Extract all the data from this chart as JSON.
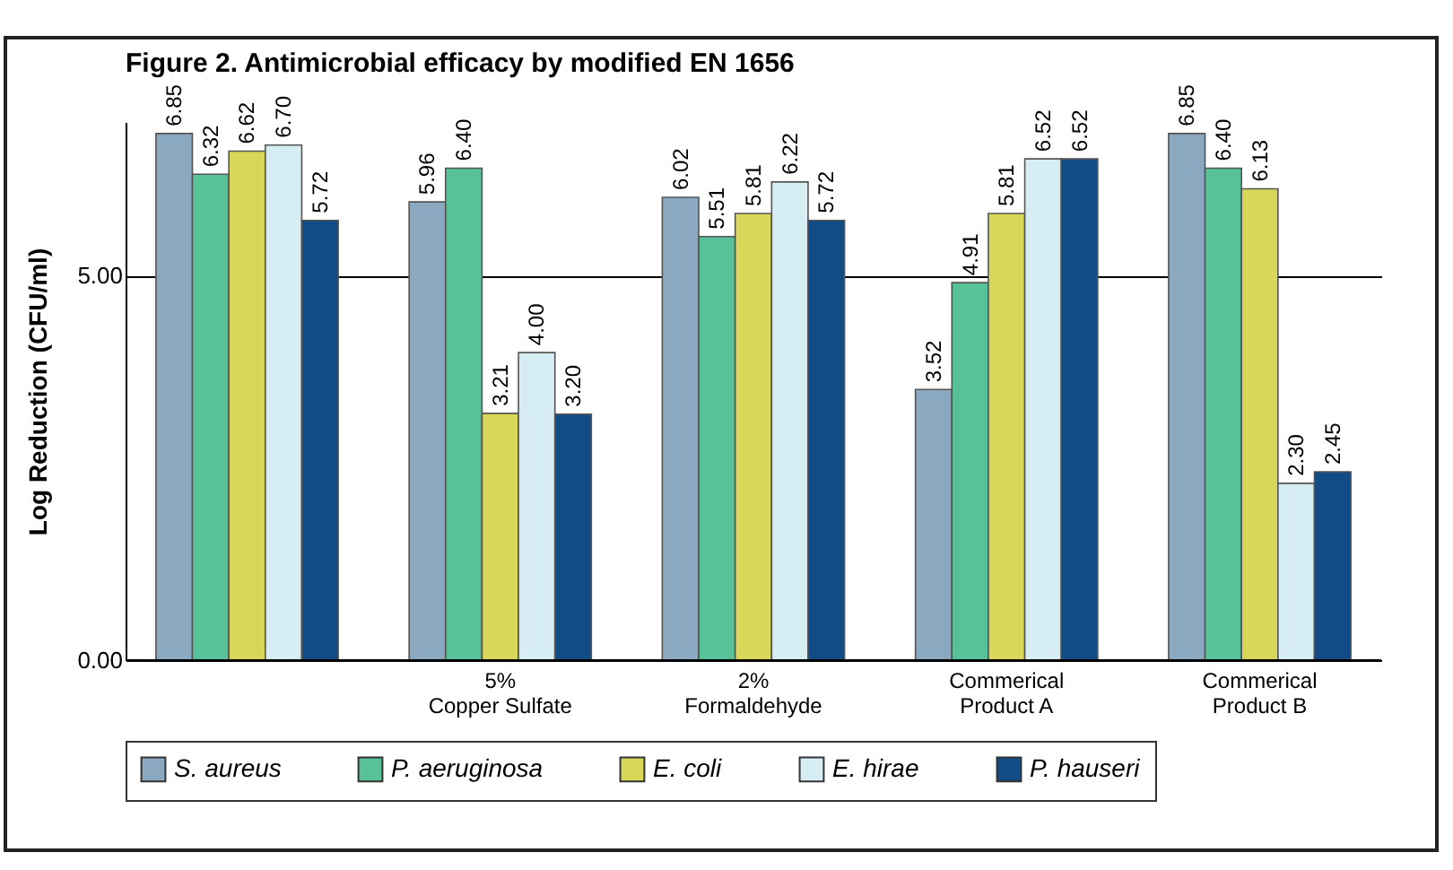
{
  "chart_data": {
    "type": "bar",
    "title": "Figure 2. Antimicrobial efficacy by modified EN 1656",
    "ylabel": "Log Reduction (CFU/ml)",
    "categories": [
      null,
      "5% Copper Sulfate",
      "2% Formaldehyde",
      "Commerical Product A",
      "Commerical Product B"
    ],
    "series": [
      {
        "name": "S. aureus",
        "color": "#8aa8c0",
        "values": [
          6.85,
          5.96,
          6.02,
          3.52,
          6.85
        ],
        "value_labels": [
          "6.85",
          "5.96",
          "6.02",
          "3.52",
          "6.85"
        ]
      },
      {
        "name": "P. aeruginosa",
        "color": "#58c197",
        "values": [
          6.32,
          6.4,
          5.51,
          4.91,
          6.4
        ],
        "value_labels": [
          "6.32",
          "6.40",
          "5.51",
          "4.91",
          "6.40"
        ]
      },
      {
        "name": "E. coli",
        "color": "#d8d75a",
        "values": [
          6.62,
          3.21,
          5.81,
          5.81,
          6.13
        ],
        "value_labels": [
          "6.62",
          "3.21",
          "5.81",
          "5.81",
          "6.13"
        ]
      },
      {
        "name": "E. hirae",
        "color": "#d6edf4",
        "values": [
          6.7,
          4.0,
          6.22,
          6.52,
          2.3
        ],
        "value_labels": [
          "6.70",
          "4.00",
          "6.22",
          "6.52",
          "2.30"
        ]
      },
      {
        "name": "P. hauseri",
        "color": "#124c86",
        "values": [
          5.72,
          3.2,
          5.72,
          6.52,
          2.45
        ],
        "value_labels": [
          "5.72",
          "3.20",
          "5.72",
          "6.52",
          "2.45"
        ]
      }
    ],
    "ylim": [
      0,
      7
    ],
    "yticks": [
      {
        "value": 0,
        "label": "0.00"
      },
      {
        "value": 5,
        "label": "5.00"
      }
    ],
    "grid": "y",
    "legend": "bottom"
  }
}
